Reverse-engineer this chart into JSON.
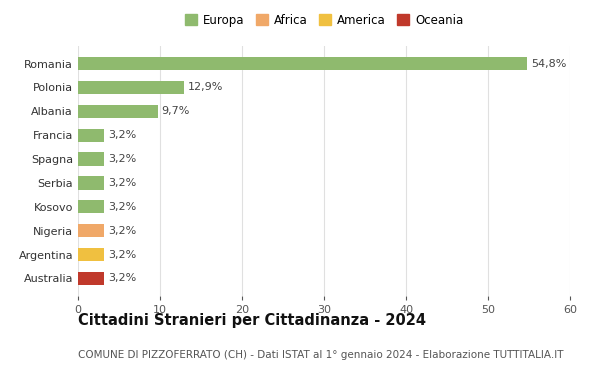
{
  "categories": [
    "Australia",
    "Argentina",
    "Nigeria",
    "Kosovo",
    "Serbia",
    "Spagna",
    "Francia",
    "Albania",
    "Polonia",
    "Romania"
  ],
  "values": [
    3.2,
    3.2,
    3.2,
    3.2,
    3.2,
    3.2,
    3.2,
    9.7,
    12.9,
    54.8
  ],
  "labels": [
    "3,2%",
    "3,2%",
    "3,2%",
    "3,2%",
    "3,2%",
    "3,2%",
    "3,2%",
    "9,7%",
    "12,9%",
    "54,8%"
  ],
  "colors": [
    "#c0392b",
    "#f0c040",
    "#f0a868",
    "#8fba6e",
    "#8fba6e",
    "#8fba6e",
    "#8fba6e",
    "#8fba6e",
    "#8fba6e",
    "#8fba6e"
  ],
  "legend_labels": [
    "Europa",
    "Africa",
    "America",
    "Oceania"
  ],
  "legend_colors": [
    "#8fba6e",
    "#f0a868",
    "#f0c040",
    "#c0392b"
  ],
  "title": "Cittadini Stranieri per Cittadinanza - 2024",
  "subtitle": "COMUNE DI PIZZOFERRATO (CH) - Dati ISTAT al 1° gennaio 2024 - Elaborazione TUTTITALIA.IT",
  "xlim": [
    0,
    60
  ],
  "xticks": [
    0,
    10,
    20,
    30,
    40,
    50,
    60
  ],
  "background_color": "#ffffff",
  "grid_color": "#e0e0e0",
  "title_fontsize": 10.5,
  "subtitle_fontsize": 7.5,
  "label_fontsize": 8,
  "tick_fontsize": 8,
  "bar_height": 0.55
}
